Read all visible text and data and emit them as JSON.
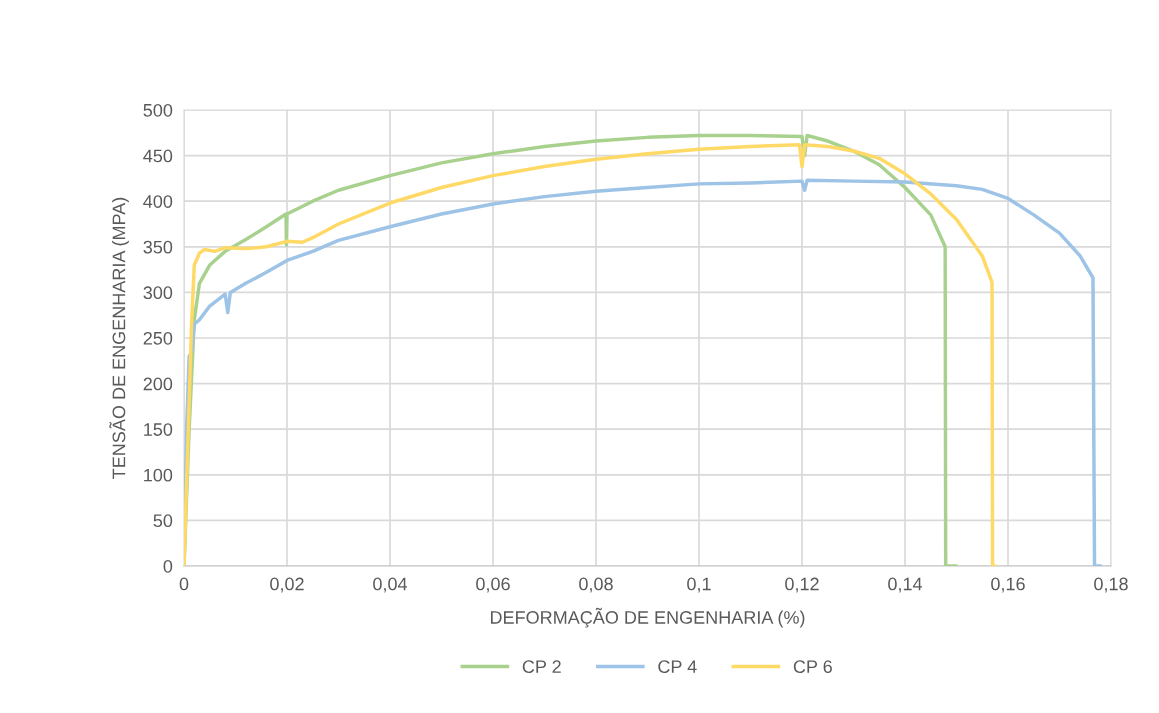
{
  "chart_data": {
    "type": "line",
    "xlabel": "DEFORMAÇÃO DE ENGENHARIA (%)",
    "ylabel": "TENSÃO DE ENGENHARIA (MPA)",
    "xlim": [
      0,
      0.18
    ],
    "xticks": [
      {
        "value": 0,
        "label": "0"
      },
      {
        "value": 0.02,
        "label": "0,02"
      },
      {
        "value": 0.04,
        "label": "0,04"
      },
      {
        "value": 0.06,
        "label": "0,06"
      },
      {
        "value": 0.08,
        "label": "0,08"
      },
      {
        "value": 0.1,
        "label": "0,1"
      },
      {
        "value": 0.12,
        "label": "0,12"
      },
      {
        "value": 0.14,
        "label": "0,14"
      },
      {
        "value": 0.16,
        "label": "0,16"
      },
      {
        "value": 0.18,
        "label": "0,18"
      }
    ],
    "ylim": [
      0,
      500
    ],
    "yticks": [
      0,
      50,
      100,
      150,
      200,
      250,
      300,
      350,
      400,
      450,
      500
    ],
    "grid": true,
    "legend": "bottom",
    "marker": "none",
    "line_style": "solid",
    "series": [
      {
        "name": "CP 2",
        "color": "#a9d18e",
        "x": [
          0,
          0.001,
          0.002,
          0.003,
          0.005,
          0.008,
          0.012,
          0.016,
          0.0198,
          0.0199,
          0.02,
          0.025,
          0.03,
          0.04,
          0.05,
          0.06,
          0.07,
          0.08,
          0.09,
          0.1,
          0.11,
          0.12,
          0.1205,
          0.121,
          0.125,
          0.13,
          0.135,
          0.14,
          0.145,
          0.1478,
          0.1479,
          0.15
        ],
        "values": [
          0,
          150,
          270,
          310,
          330,
          345,
          358,
          372,
          386,
          352,
          386,
          400,
          412,
          428,
          442,
          452,
          460,
          466,
          470,
          472,
          472,
          471,
          450,
          472,
          466,
          455,
          440,
          415,
          385,
          350,
          0,
          0
        ]
      },
      {
        "name": "CP 4",
        "color": "#9dc3e6",
        "x": [
          0,
          0.0005,
          0.001,
          0.0015,
          0.002,
          0.003,
          0.005,
          0.008,
          0.0085,
          0.009,
          0.012,
          0.016,
          0.02,
          0.025,
          0.03,
          0.04,
          0.05,
          0.06,
          0.07,
          0.08,
          0.09,
          0.1,
          0.11,
          0.12,
          0.1205,
          0.121,
          0.13,
          0.14,
          0.15,
          0.155,
          0.16,
          0.165,
          0.17,
          0.174,
          0.1765,
          0.1768,
          0.178
        ],
        "values": [
          0,
          150,
          230,
          235,
          265,
          270,
          285,
          298,
          278,
          300,
          310,
          322,
          335,
          345,
          357,
          372,
          386,
          397,
          405,
          411,
          415,
          419,
          420,
          422,
          412,
          423,
          422,
          421,
          417,
          413,
          403,
          385,
          365,
          340,
          316,
          0,
          0
        ]
      },
      {
        "name": "CP 6",
        "color": "#ffd966",
        "x": [
          0,
          0.001,
          0.0015,
          0.002,
          0.003,
          0.004,
          0.006,
          0.008,
          0.012,
          0.016,
          0.02,
          0.023,
          0.025,
          0.03,
          0.04,
          0.05,
          0.06,
          0.07,
          0.08,
          0.09,
          0.1,
          0.11,
          0.1195,
          0.12,
          0.1205,
          0.125,
          0.13,
          0.135,
          0.14,
          0.145,
          0.15,
          0.155,
          0.1569,
          0.157,
          0.1575
        ],
        "values": [
          0,
          180,
          270,
          330,
          343,
          347,
          345,
          349,
          348,
          350,
          356,
          355,
          360,
          375,
          398,
          415,
          428,
          438,
          446,
          452,
          457,
          460,
          462,
          438,
          462,
          460,
          455,
          447,
          430,
          408,
          380,
          340,
          311,
          0,
          0
        ]
      }
    ]
  }
}
